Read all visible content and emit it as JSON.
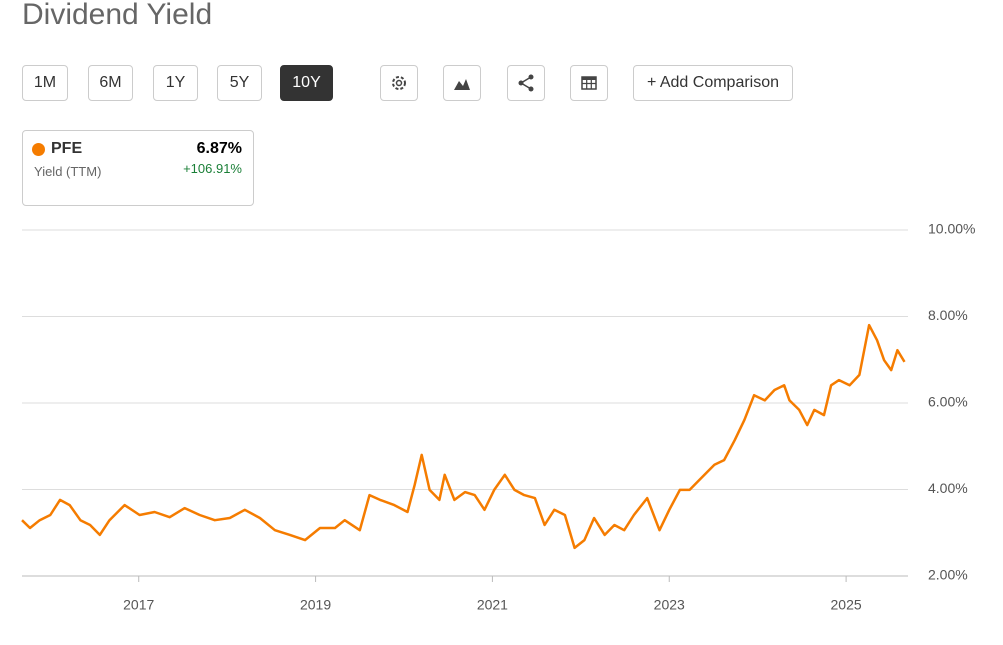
{
  "header": {
    "title": "Dividend Yield"
  },
  "toolbar": {
    "ranges": [
      "1M",
      "6M",
      "1Y",
      "5Y",
      "10Y"
    ],
    "active": "10Y",
    "comparison": "+ Add Comparison"
  },
  "legend_card": {
    "symbol": "PFE",
    "value": "6.87%",
    "metric": "Yield (TTM)",
    "change": "+106.91%",
    "color": "#f57c00",
    "change_color": "#1a7f37"
  },
  "chart_data": {
    "type": "line",
    "series": [
      {
        "name": "PFE",
        "color": "#f57c00",
        "x": [
          2015.68,
          2015.77,
          2015.88,
          2016.0,
          2016.11,
          2016.22,
          2016.34,
          2016.45,
          2016.56,
          2016.67,
          2016.84,
          2017.01,
          2017.18,
          2017.35,
          2017.52,
          2017.69,
          2017.86,
          2018.03,
          2018.2,
          2018.37,
          2018.54,
          2018.71,
          2018.88,
          2019.05,
          2019.22,
          2019.33,
          2019.5,
          2019.61,
          2019.73,
          2019.89,
          2020.04,
          2020.12,
          2020.2,
          2020.29,
          2020.4,
          2020.46,
          2020.57,
          2020.69,
          2020.8,
          2020.91,
          2021.02,
          2021.14,
          2021.25,
          2021.36,
          2021.48,
          2021.59,
          2021.7,
          2021.82,
          2021.93,
          2022.04,
          2022.15,
          2022.27,
          2022.38,
          2022.49,
          2022.6,
          2022.75,
          2022.89,
          2023.0,
          2023.12,
          2023.23,
          2023.34,
          2023.51,
          2023.62,
          2023.74,
          2023.85,
          2023.96,
          2024.08,
          2024.19,
          2024.3,
          2024.36,
          2024.47,
          2024.56,
          2024.64,
          2024.75,
          2024.83,
          2024.92,
          2025.04,
          2025.15,
          2025.26,
          2025.35,
          2025.43,
          2025.51,
          2025.58,
          2025.66
        ],
        "values": [
          3.29,
          3.11,
          3.29,
          3.41,
          3.76,
          3.64,
          3.29,
          3.18,
          2.95,
          3.29,
          3.64,
          3.41,
          3.48,
          3.36,
          3.57,
          3.41,
          3.29,
          3.34,
          3.53,
          3.34,
          3.06,
          2.95,
          2.83,
          3.11,
          3.11,
          3.29,
          3.06,
          3.87,
          3.76,
          3.64,
          3.48,
          4.1,
          4.8,
          3.99,
          3.76,
          4.34,
          3.76,
          3.94,
          3.87,
          3.53,
          3.99,
          4.34,
          3.99,
          3.87,
          3.8,
          3.18,
          3.53,
          3.41,
          2.65,
          2.83,
          3.34,
          2.95,
          3.18,
          3.06,
          3.41,
          3.8,
          3.06,
          3.53,
          3.99,
          3.99,
          4.22,
          4.57,
          4.68,
          5.14,
          5.61,
          6.18,
          6.06,
          6.3,
          6.41,
          6.06,
          5.84,
          5.49,
          5.84,
          5.72,
          6.41,
          6.53,
          6.41,
          6.65,
          7.8,
          7.45,
          6.99,
          6.76,
          7.22,
          6.95
        ]
      }
    ],
    "xlim": [
      2015.68,
      2025.7
    ],
    "xticks": [
      2017,
      2019,
      2021,
      2023,
      2025
    ],
    "ylim": [
      2,
      10
    ],
    "yticks": [
      {
        "value": 2,
        "label": "2.00%"
      },
      {
        "value": 4,
        "label": "4.00%"
      },
      {
        "value": 6,
        "label": "6.00%"
      },
      {
        "value": 8,
        "label": "8.00%"
      },
      {
        "value": 10,
        "label": "10.00%"
      }
    ],
    "grid": true
  }
}
